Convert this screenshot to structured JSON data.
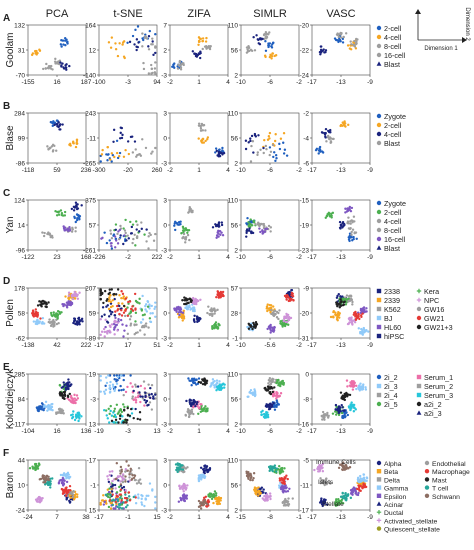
{
  "methods": [
    "PCA",
    "t-SNE",
    "ZIFA",
    "SIMLR",
    "VASC"
  ],
  "dimension_key": {
    "x_label": "Dimension 1",
    "y_label": "Dimension 2"
  },
  "colors": {
    "blue": "#1f5fbf",
    "navy": "#1a237e",
    "orange": "#f5a623",
    "gray": "#9e9e9e",
    "green": "#4caf50",
    "purple": "#7e57c2",
    "cyan": "#26c6da",
    "pink": "#ec6fa8",
    "red": "#e53935",
    "black": "#212121",
    "brown": "#8d6e63",
    "lightblue": "#90caf9",
    "yellow": "#fdd835",
    "teal": "#26a69a",
    "lavender": "#ce93d8",
    "olive": "#9e9d24"
  },
  "panels": [
    {
      "letter": "A",
      "dataset": "Goolam",
      "legend_cols": [
        [
          {
            "label": "2-cell",
            "color": "blue",
            "marker": "circle"
          },
          {
            "label": "4-cell",
            "color": "orange",
            "marker": "circle"
          },
          {
            "label": "8-cell",
            "color": "gray",
            "marker": "circle"
          },
          {
            "label": "16-cell",
            "color": "gray",
            "marker": "circle"
          },
          {
            "label": "Blast",
            "color": "navy",
            "marker": "triangle"
          }
        ]
      ],
      "plots": [
        {
          "xticks": [
            "-155",
            "16",
            "187"
          ],
          "yticks": [
            "132",
            "31",
            "-70"
          ]
        },
        {
          "xticks": [
            "-100",
            "-3",
            "94"
          ],
          "yticks": [
            "164",
            "12",
            "-140"
          ]
        },
        {
          "xticks": [
            "-2",
            "1",
            "4"
          ],
          "yticks": [
            "7",
            "2",
            "-3"
          ]
        },
        {
          "xticks": [
            "-10",
            "-6",
            "-2"
          ],
          "yticks": [
            "110",
            "56",
            "2"
          ]
        },
        {
          "xticks": [
            "-17",
            "-13",
            "-9"
          ],
          "yticks": [
            "-20",
            "-22",
            "-24"
          ]
        }
      ]
    },
    {
      "letter": "B",
      "dataset": "Blase",
      "legend_cols": [
        [
          {
            "label": "Zygote",
            "color": "blue",
            "marker": "circle"
          },
          {
            "label": "2-cell",
            "color": "orange",
            "marker": "circle"
          },
          {
            "label": "4-cell",
            "color": "navy",
            "marker": "circle"
          },
          {
            "label": "Blast",
            "color": "gray",
            "marker": "circle"
          }
        ]
      ],
      "plots": [
        {
          "xticks": [
            "-118",
            "59",
            "236"
          ],
          "yticks": [
            "284",
            "99",
            "-86"
          ]
        },
        {
          "xticks": [
            "-300",
            "-20",
            "260"
          ],
          "yticks": [
            "243",
            "-11",
            "-265"
          ]
        },
        {
          "xticks": [
            "-2",
            "1",
            "4"
          ],
          "yticks": [
            "3",
            "0",
            "-3"
          ]
        },
        {
          "xticks": [
            "-10",
            "-6",
            "-2"
          ],
          "yticks": [
            "110",
            "56",
            "2"
          ]
        },
        {
          "xticks": [
            "-17",
            "-13",
            "-9"
          ],
          "yticks": [
            "-2",
            "-4",
            "-6"
          ]
        }
      ]
    },
    {
      "letter": "C",
      "dataset": "Yan",
      "legend_cols": [
        [
          {
            "label": "Zygote",
            "color": "blue",
            "marker": "circle"
          },
          {
            "label": "2-cell",
            "color": "green",
            "marker": "circle"
          },
          {
            "label": "4-cell",
            "color": "gray",
            "marker": "circle"
          },
          {
            "label": "8-cell",
            "color": "gray",
            "marker": "circle"
          },
          {
            "label": "16-cell",
            "color": "purple",
            "marker": "circle"
          },
          {
            "label": "Blast",
            "color": "navy",
            "marker": "triangle"
          }
        ]
      ],
      "plots": [
        {
          "xticks": [
            "-122",
            "23",
            "168"
          ],
          "yticks": [
            "124",
            "14",
            "-96"
          ]
        },
        {
          "xticks": [
            "-226",
            "-2",
            "222"
          ],
          "yticks": [
            "375",
            "57",
            "-261"
          ]
        },
        {
          "xticks": [
            "-2",
            "1",
            "4"
          ],
          "yticks": [
            "3",
            "0",
            "-3"
          ]
        },
        {
          "xticks": [
            "-10",
            "-6",
            "-2"
          ],
          "yticks": [
            "110",
            "56",
            "2"
          ]
        },
        {
          "xticks": [
            "-17",
            "-13",
            "-9"
          ],
          "yticks": [
            "-15",
            "-19",
            "-23"
          ]
        }
      ]
    },
    {
      "letter": "D",
      "dataset": "Pollen",
      "legend_cols": [
        [
          {
            "label": "2338",
            "color": "navy",
            "marker": "square"
          },
          {
            "label": "2339",
            "color": "orange",
            "marker": "square"
          },
          {
            "label": "K562",
            "color": "gray",
            "marker": "square"
          },
          {
            "label": "BJ",
            "color": "lightblue",
            "marker": "square"
          },
          {
            "label": "HL60",
            "color": "purple",
            "marker": "square"
          },
          {
            "label": "hiPSC",
            "color": "navy",
            "marker": "square"
          }
        ],
        [
          {
            "label": "Kera",
            "color": "green",
            "marker": "plus"
          },
          {
            "label": "NPC",
            "color": "lavender",
            "marker": "plus"
          },
          {
            "label": "GW16",
            "color": "gray",
            "marker": "circle"
          },
          {
            "label": "GW21",
            "color": "red",
            "marker": "circle"
          },
          {
            "label": "GW21+3",
            "color": "black",
            "marker": "circle"
          }
        ]
      ],
      "plots": [
        {
          "xticks": [
            "-138",
            "42",
            "222"
          ],
          "yticks": [
            "178",
            "58",
            "-62"
          ]
        },
        {
          "xticks": [
            "-17",
            "17",
            "51"
          ],
          "yticks": [
            "207",
            "59",
            "-89"
          ]
        },
        {
          "xticks": [
            "-2",
            "1",
            "4"
          ],
          "yticks": [
            "3",
            "0",
            "-3"
          ]
        },
        {
          "xticks": [
            "-10",
            "-5.6",
            "-2"
          ],
          "yticks": [
            "57",
            "28",
            "-1"
          ]
        },
        {
          "xticks": [
            "-17",
            "-13",
            "-9"
          ],
          "yticks": [
            "-9",
            "-20",
            "-31"
          ]
        }
      ]
    },
    {
      "letter": "E",
      "dataset": "Kolodziejczyk",
      "legend_cols": [
        [
          {
            "label": "2i_2",
            "color": "blue",
            "marker": "circle"
          },
          {
            "label": "2i_3",
            "color": "lightblue",
            "marker": "square"
          },
          {
            "label": "2i_4",
            "color": "gray",
            "marker": "square"
          },
          {
            "label": "2i_5",
            "color": "green",
            "marker": "circle"
          }
        ],
        [
          {
            "label": "Serum_1",
            "color": "pink",
            "marker": "square"
          },
          {
            "label": "Serum_2",
            "color": "gray",
            "marker": "square"
          },
          {
            "label": "Serum_3",
            "color": "cyan",
            "marker": "square"
          },
          {
            "label": "a2i_2",
            "color": "black",
            "marker": "circle"
          },
          {
            "label": "a2i_3",
            "color": "navy",
            "marker": "triangle"
          }
        ]
      ],
      "plots": [
        {
          "xticks": [
            "-104",
            "16",
            "136"
          ],
          "yticks": [
            "285",
            "84",
            "-117"
          ]
        },
        {
          "xticks": [
            "-19",
            "-3",
            "13"
          ],
          "yticks": [
            "-19",
            "-3",
            "13"
          ]
        },
        {
          "xticks": [
            "-2",
            "1",
            "4"
          ],
          "yticks": [
            "3",
            "0",
            "-3"
          ]
        },
        {
          "xticks": [
            "-10",
            "-6",
            "-2"
          ],
          "yticks": [
            "110",
            "56",
            "2"
          ]
        },
        {
          "xticks": [
            "-17",
            "-13",
            "-9"
          ],
          "yticks": [
            "0",
            "-8",
            "-16"
          ]
        }
      ]
    },
    {
      "letter": "F",
      "dataset": "Baron",
      "legend_cols": [
        [
          {
            "label": "Alpha",
            "color": "navy",
            "marker": "circle"
          },
          {
            "label": "Beta",
            "color": "orange",
            "marker": "square"
          },
          {
            "label": "Delta",
            "color": "gray",
            "marker": "square"
          },
          {
            "label": "Gamma",
            "color": "lightblue",
            "marker": "square"
          },
          {
            "label": "Epsilon",
            "color": "purple",
            "marker": "square"
          },
          {
            "label": "Acinar",
            "color": "navy",
            "marker": "triangle"
          },
          {
            "label": "Ductal",
            "color": "green",
            "marker": "plus"
          },
          {
            "label": "Activated_stellate",
            "color": "lavender",
            "marker": "plus"
          }
        ],
        [
          {
            "label": "Endothelial",
            "color": "gray",
            "marker": "circle"
          },
          {
            "label": "Macrophage",
            "color": "red",
            "marker": "circle"
          },
          {
            "label": "Mast",
            "color": "black",
            "marker": "circle"
          },
          {
            "label": "T cell",
            "color": "teal",
            "marker": "circle"
          },
          {
            "label": "Schwann",
            "color": "brown",
            "marker": "circle"
          }
        ]
      ],
      "extra_legend": {
        "label": "Quiescent_stellate",
        "color": "olive",
        "marker": "circle"
      },
      "annotations": [
        "Immune Cells",
        "Islets",
        "Stellate"
      ],
      "plots": [
        {
          "xticks": [
            "-24",
            "7",
            "38"
          ],
          "yticks": [
            "44",
            "10",
            "-24"
          ]
        },
        {
          "xticks": [
            "-17",
            "-1",
            "15"
          ],
          "yticks": [
            "-17",
            "-1",
            "15"
          ]
        },
        {
          "xticks": [
            "-2",
            "1",
            "4"
          ],
          "yticks": [
            "3",
            "0",
            "-3"
          ]
        },
        {
          "xticks": [
            "-15",
            "-8",
            "-1"
          ],
          "yticks": [
            "110",
            "56",
            "2"
          ]
        },
        {
          "xticks": [
            "-17",
            "-13",
            "-9"
          ],
          "yticks": [
            "-5",
            "-11",
            "-17"
          ]
        }
      ]
    }
  ]
}
